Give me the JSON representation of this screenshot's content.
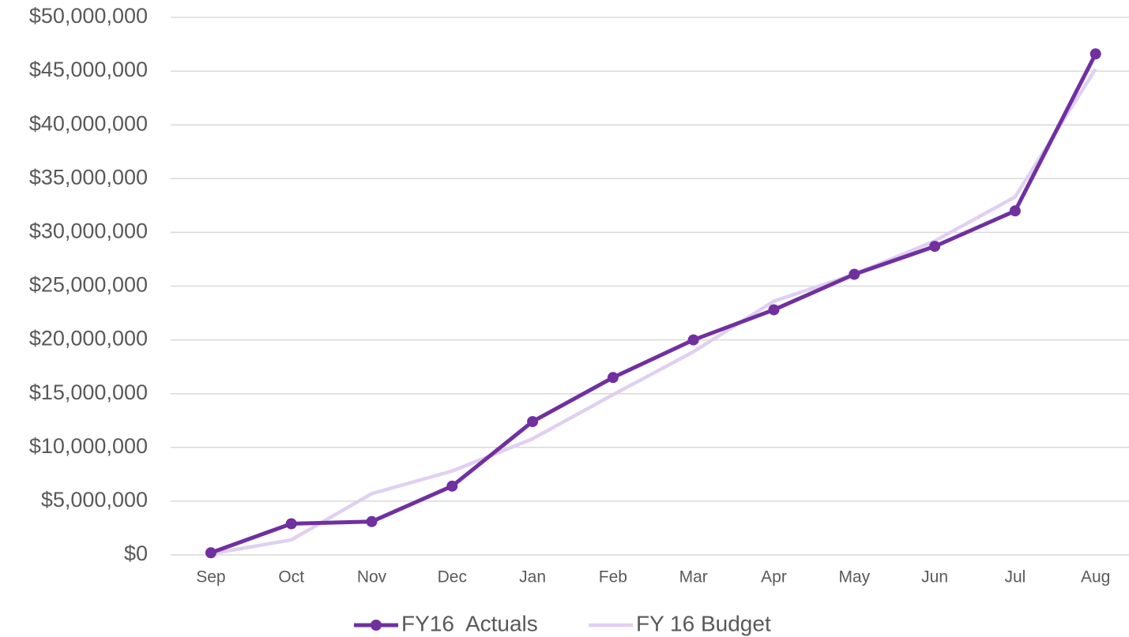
{
  "chart_data": {
    "type": "line",
    "categories": [
      "Sep",
      "Oct",
      "Nov",
      "Dec",
      "Jan",
      "Feb",
      "Mar",
      "Apr",
      "May",
      "Jun",
      "Jul",
      "Aug"
    ],
    "series": [
      {
        "name": "FY16  Actuals",
        "color": "#7030a0",
        "values": [
          200000,
          2900000,
          3100000,
          6400000,
          12400000,
          16500000,
          20000000,
          22800000,
          26100000,
          28700000,
          32000000,
          46600000
        ]
      },
      {
        "name": "FY 16 Budget",
        "color": "#e0d0f0",
        "values": [
          100000,
          1400000,
          5700000,
          7800000,
          10800000,
          14900000,
          18900000,
          23600000,
          26100000,
          29200000,
          33300000,
          45200000
        ]
      }
    ],
    "ylim": [
      0,
      50000000
    ],
    "yticks": [
      {
        "value": 0,
        "label": "$0"
      },
      {
        "value": 5000000,
        "label": "$5,000,000"
      },
      {
        "value": 10000000,
        "label": "$10,000,000"
      },
      {
        "value": 15000000,
        "label": "$15,000,000"
      },
      {
        "value": 20000000,
        "label": "$20,000,000"
      },
      {
        "value": 25000000,
        "label": "$25,000,000"
      },
      {
        "value": 30000000,
        "label": "$30,000,000"
      },
      {
        "value": 35000000,
        "label": "$35,000,000"
      },
      {
        "value": 40000000,
        "label": "$40,000,000"
      },
      {
        "value": 45000000,
        "label": "$45,000,000"
      },
      {
        "value": 50000000,
        "label": "$50,000,000"
      }
    ],
    "grid": true,
    "legend": "bottom"
  }
}
